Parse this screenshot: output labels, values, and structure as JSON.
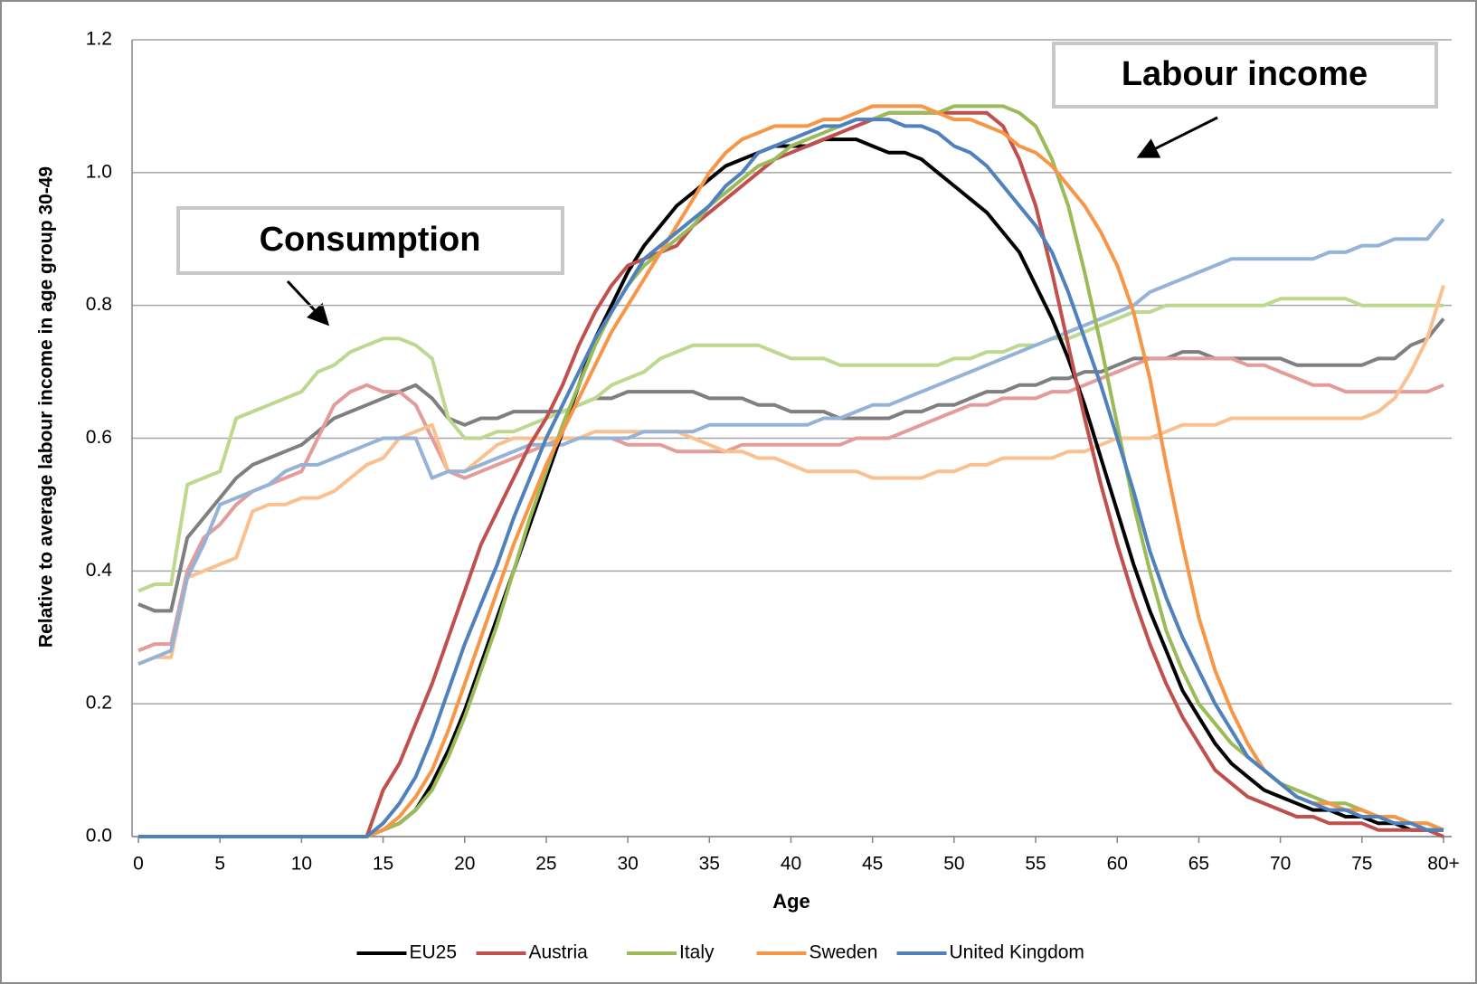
{
  "chart_data": {
    "type": "line",
    "y_label": "Relative to average labour income in age group 30-49",
    "x_label": "Age",
    "annotations": [
      "Consumption",
      "Labour income"
    ],
    "legend": "bottom",
    "grid": true,
    "xlim": [
      0,
      80
    ],
    "xticks": [
      0,
      5,
      10,
      15,
      20,
      25,
      30,
      35,
      40,
      45,
      50,
      55,
      60,
      65,
      70,
      75,
      {
        "value": 80,
        "label": "80+"
      }
    ],
    "ylim": [
      0,
      1.2
    ],
    "yticks": [
      {
        "value": 0,
        "label": "0.0"
      },
      0.2,
      0.4,
      0.6,
      0.8,
      {
        "value": 1,
        "label": "1.0"
      },
      1.2
    ],
    "x": [
      0,
      1,
      2,
      3,
      4,
      5,
      6,
      7,
      8,
      9,
      10,
      11,
      12,
      13,
      14,
      15,
      16,
      17,
      18,
      19,
      20,
      21,
      22,
      23,
      24,
      25,
      26,
      27,
      28,
      29,
      30,
      31,
      32,
      33,
      34,
      35,
      36,
      37,
      38,
      39,
      40,
      41,
      42,
      43,
      44,
      45,
      46,
      47,
      48,
      49,
      50,
      51,
      52,
      53,
      54,
      55,
      56,
      57,
      58,
      59,
      60,
      61,
      62,
      63,
      64,
      65,
      66,
      67,
      68,
      69,
      70,
      71,
      72,
      73,
      74,
      75,
      76,
      77,
      78,
      79,
      80
    ],
    "series": [
      {
        "name": "EU25",
        "color": "#000000",
        "consumption_color": "#7f7f7f",
        "values": [
          0,
          0,
          0,
          0,
          0,
          0,
          0,
          0,
          0,
          0,
          0,
          0,
          0,
          0,
          0,
          0.01,
          0.02,
          0.04,
          0.08,
          0.13,
          0.19,
          0.26,
          0.33,
          0.4,
          0.47,
          0.54,
          0.61,
          0.68,
          0.75,
          0.8,
          0.85,
          0.89,
          0.92,
          0.95,
          0.97,
          0.99,
          1.01,
          1.02,
          1.03,
          1.04,
          1.04,
          1.04,
          1.05,
          1.05,
          1.05,
          1.04,
          1.03,
          1.03,
          1.02,
          1.0,
          0.98,
          0.96,
          0.94,
          0.91,
          0.88,
          0.83,
          0.78,
          0.72,
          0.65,
          0.57,
          0.49,
          0.41,
          0.34,
          0.28,
          0.22,
          0.18,
          0.14,
          0.11,
          0.09,
          0.07,
          0.06,
          0.05,
          0.04,
          0.04,
          0.03,
          0.03,
          0.02,
          0.02,
          0.01,
          0.01,
          0.01
        ],
        "consumption": [
          0.35,
          0.34,
          0.34,
          0.45,
          0.48,
          0.51,
          0.54,
          0.56,
          0.57,
          0.58,
          0.59,
          0.61,
          0.63,
          0.64,
          0.65,
          0.66,
          0.67,
          0.68,
          0.66,
          0.63,
          0.62,
          0.63,
          0.63,
          0.64,
          0.64,
          0.64,
          0.64,
          0.65,
          0.66,
          0.66,
          0.67,
          0.67,
          0.67,
          0.67,
          0.67,
          0.66,
          0.66,
          0.66,
          0.65,
          0.65,
          0.64,
          0.64,
          0.64,
          0.63,
          0.63,
          0.63,
          0.63,
          0.64,
          0.64,
          0.65,
          0.65,
          0.66,
          0.67,
          0.67,
          0.68,
          0.68,
          0.69,
          0.69,
          0.7,
          0.7,
          0.71,
          0.72,
          0.72,
          0.72,
          0.73,
          0.73,
          0.72,
          0.72,
          0.72,
          0.72,
          0.72,
          0.71,
          0.71,
          0.71,
          0.71,
          0.71,
          0.72,
          0.72,
          0.74,
          0.75,
          0.78
        ]
      },
      {
        "name": "Austria",
        "color": "#c0504d",
        "consumption_color": "#e39c9a",
        "values": [
          0,
          0,
          0,
          0,
          0,
          0,
          0,
          0,
          0,
          0,
          0,
          0,
          0,
          0,
          0,
          0.07,
          0.11,
          0.17,
          0.23,
          0.3,
          0.37,
          0.44,
          0.49,
          0.54,
          0.59,
          0.63,
          0.68,
          0.74,
          0.79,
          0.83,
          0.86,
          0.87,
          0.88,
          0.89,
          0.92,
          0.94,
          0.96,
          0.98,
          1.0,
          1.02,
          1.03,
          1.04,
          1.05,
          1.06,
          1.07,
          1.08,
          1.09,
          1.09,
          1.09,
          1.09,
          1.09,
          1.09,
          1.09,
          1.07,
          1.02,
          0.95,
          0.85,
          0.74,
          0.63,
          0.53,
          0.44,
          0.36,
          0.29,
          0.23,
          0.18,
          0.14,
          0.1,
          0.08,
          0.06,
          0.05,
          0.04,
          0.03,
          0.03,
          0.02,
          0.02,
          0.02,
          0.01,
          0.01,
          0.01,
          0.01,
          0.0
        ],
        "consumption": [
          0.28,
          0.29,
          0.29,
          0.4,
          0.45,
          0.47,
          0.5,
          0.52,
          0.53,
          0.54,
          0.55,
          0.6,
          0.65,
          0.67,
          0.68,
          0.67,
          0.67,
          0.65,
          0.6,
          0.55,
          0.54,
          0.55,
          0.56,
          0.57,
          0.58,
          0.59,
          0.6,
          0.6,
          0.6,
          0.6,
          0.59,
          0.59,
          0.59,
          0.58,
          0.58,
          0.58,
          0.58,
          0.59,
          0.59,
          0.59,
          0.59,
          0.59,
          0.59,
          0.59,
          0.6,
          0.6,
          0.6,
          0.61,
          0.62,
          0.63,
          0.64,
          0.65,
          0.65,
          0.66,
          0.66,
          0.66,
          0.67,
          0.67,
          0.68,
          0.69,
          0.7,
          0.71,
          0.72,
          0.72,
          0.72,
          0.72,
          0.72,
          0.72,
          0.71,
          0.71,
          0.7,
          0.69,
          0.68,
          0.68,
          0.67,
          0.67,
          0.67,
          0.67,
          0.67,
          0.67,
          0.68
        ]
      },
      {
        "name": "Italy",
        "color": "#9bbb59",
        "consumption_color": "#bcd98f",
        "values": [
          0,
          0,
          0,
          0,
          0,
          0,
          0,
          0,
          0,
          0,
          0,
          0,
          0,
          0,
          0,
          0.01,
          0.02,
          0.04,
          0.07,
          0.12,
          0.18,
          0.25,
          0.32,
          0.4,
          0.48,
          0.55,
          0.62,
          0.68,
          0.74,
          0.79,
          0.83,
          0.86,
          0.88,
          0.9,
          0.92,
          0.95,
          0.97,
          0.99,
          1.01,
          1.02,
          1.04,
          1.05,
          1.06,
          1.07,
          1.08,
          1.08,
          1.09,
          1.09,
          1.09,
          1.09,
          1.1,
          1.1,
          1.1,
          1.1,
          1.09,
          1.07,
          1.02,
          0.95,
          0.85,
          0.74,
          0.62,
          0.5,
          0.4,
          0.31,
          0.25,
          0.2,
          0.17,
          0.14,
          0.12,
          0.1,
          0.08,
          0.07,
          0.06,
          0.05,
          0.05,
          0.04,
          0.03,
          0.03,
          0.02,
          0.02,
          0.01
        ],
        "consumption": [
          0.37,
          0.38,
          0.38,
          0.53,
          0.54,
          0.55,
          0.63,
          0.64,
          0.65,
          0.66,
          0.67,
          0.7,
          0.71,
          0.73,
          0.74,
          0.75,
          0.75,
          0.74,
          0.72,
          0.63,
          0.6,
          0.6,
          0.61,
          0.61,
          0.62,
          0.63,
          0.64,
          0.65,
          0.66,
          0.68,
          0.69,
          0.7,
          0.72,
          0.73,
          0.74,
          0.74,
          0.74,
          0.74,
          0.74,
          0.73,
          0.72,
          0.72,
          0.72,
          0.71,
          0.71,
          0.71,
          0.71,
          0.71,
          0.71,
          0.71,
          0.72,
          0.72,
          0.73,
          0.73,
          0.74,
          0.74,
          0.75,
          0.75,
          0.76,
          0.77,
          0.78,
          0.79,
          0.79,
          0.8,
          0.8,
          0.8,
          0.8,
          0.8,
          0.8,
          0.8,
          0.81,
          0.81,
          0.81,
          0.81,
          0.81,
          0.8,
          0.8,
          0.8,
          0.8,
          0.8,
          0.8
        ]
      },
      {
        "name": "Sweden",
        "color": "#f79646",
        "consumption_color": "#fbc08f",
        "values": [
          0,
          0,
          0,
          0,
          0,
          0,
          0,
          0,
          0,
          0,
          0,
          0,
          0,
          0,
          0,
          0.01,
          0.03,
          0.06,
          0.1,
          0.16,
          0.23,
          0.3,
          0.37,
          0.44,
          0.5,
          0.56,
          0.61,
          0.66,
          0.71,
          0.76,
          0.8,
          0.84,
          0.88,
          0.92,
          0.96,
          1.0,
          1.03,
          1.05,
          1.06,
          1.07,
          1.07,
          1.07,
          1.08,
          1.08,
          1.09,
          1.1,
          1.1,
          1.1,
          1.1,
          1.09,
          1.08,
          1.08,
          1.07,
          1.06,
          1.04,
          1.03,
          1.01,
          0.98,
          0.95,
          0.91,
          0.86,
          0.79,
          0.69,
          0.56,
          0.44,
          0.33,
          0.25,
          0.19,
          0.14,
          0.1,
          0.08,
          0.06,
          0.05,
          0.05,
          0.04,
          0.04,
          0.03,
          0.03,
          0.02,
          0.02,
          0.01
        ],
        "consumption": [
          0.26,
          0.27,
          0.27,
          0.39,
          0.4,
          0.41,
          0.42,
          0.49,
          0.5,
          0.5,
          0.51,
          0.51,
          0.52,
          0.54,
          0.56,
          0.57,
          0.6,
          0.61,
          0.62,
          0.55,
          0.55,
          0.57,
          0.59,
          0.6,
          0.6,
          0.6,
          0.6,
          0.6,
          0.61,
          0.61,
          0.61,
          0.61,
          0.61,
          0.61,
          0.6,
          0.59,
          0.58,
          0.58,
          0.57,
          0.57,
          0.56,
          0.55,
          0.55,
          0.55,
          0.55,
          0.54,
          0.54,
          0.54,
          0.54,
          0.55,
          0.55,
          0.56,
          0.56,
          0.57,
          0.57,
          0.57,
          0.57,
          0.58,
          0.58,
          0.59,
          0.6,
          0.6,
          0.6,
          0.61,
          0.62,
          0.62,
          0.62,
          0.63,
          0.63,
          0.63,
          0.63,
          0.63,
          0.63,
          0.63,
          0.63,
          0.63,
          0.64,
          0.66,
          0.7,
          0.75,
          0.83
        ]
      },
      {
        "name": "United Kingdom",
        "color": "#4f81bd",
        "consumption_color": "#95b3d7",
        "values": [
          0,
          0,
          0,
          0,
          0,
          0,
          0,
          0,
          0,
          0,
          0,
          0,
          0,
          0,
          0,
          0.02,
          0.05,
          0.09,
          0.15,
          0.22,
          0.29,
          0.35,
          0.41,
          0.48,
          0.54,
          0.6,
          0.65,
          0.7,
          0.75,
          0.79,
          0.83,
          0.87,
          0.89,
          0.91,
          0.93,
          0.95,
          0.98,
          1.0,
          1.03,
          1.04,
          1.05,
          1.06,
          1.07,
          1.07,
          1.08,
          1.08,
          1.08,
          1.07,
          1.07,
          1.06,
          1.04,
          1.03,
          1.01,
          0.98,
          0.95,
          0.92,
          0.88,
          0.82,
          0.75,
          0.68,
          0.6,
          0.52,
          0.43,
          0.36,
          0.3,
          0.25,
          0.2,
          0.16,
          0.12,
          0.1,
          0.08,
          0.06,
          0.05,
          0.04,
          0.04,
          0.03,
          0.03,
          0.02,
          0.02,
          0.01,
          0.01
        ],
        "consumption": [
          0.26,
          0.27,
          0.28,
          0.39,
          0.44,
          0.5,
          0.51,
          0.52,
          0.53,
          0.55,
          0.56,
          0.56,
          0.57,
          0.58,
          0.59,
          0.6,
          0.6,
          0.6,
          0.54,
          0.55,
          0.55,
          0.56,
          0.57,
          0.58,
          0.59,
          0.59,
          0.59,
          0.6,
          0.6,
          0.6,
          0.6,
          0.61,
          0.61,
          0.61,
          0.61,
          0.62,
          0.62,
          0.62,
          0.62,
          0.62,
          0.62,
          0.62,
          0.63,
          0.63,
          0.64,
          0.65,
          0.65,
          0.66,
          0.67,
          0.68,
          0.69,
          0.7,
          0.71,
          0.72,
          0.73,
          0.74,
          0.75,
          0.76,
          0.77,
          0.78,
          0.79,
          0.8,
          0.82,
          0.83,
          0.84,
          0.85,
          0.86,
          0.87,
          0.87,
          0.87,
          0.87,
          0.87,
          0.87,
          0.88,
          0.88,
          0.89,
          0.89,
          0.9,
          0.9,
          0.9,
          0.93
        ]
      }
    ]
  }
}
